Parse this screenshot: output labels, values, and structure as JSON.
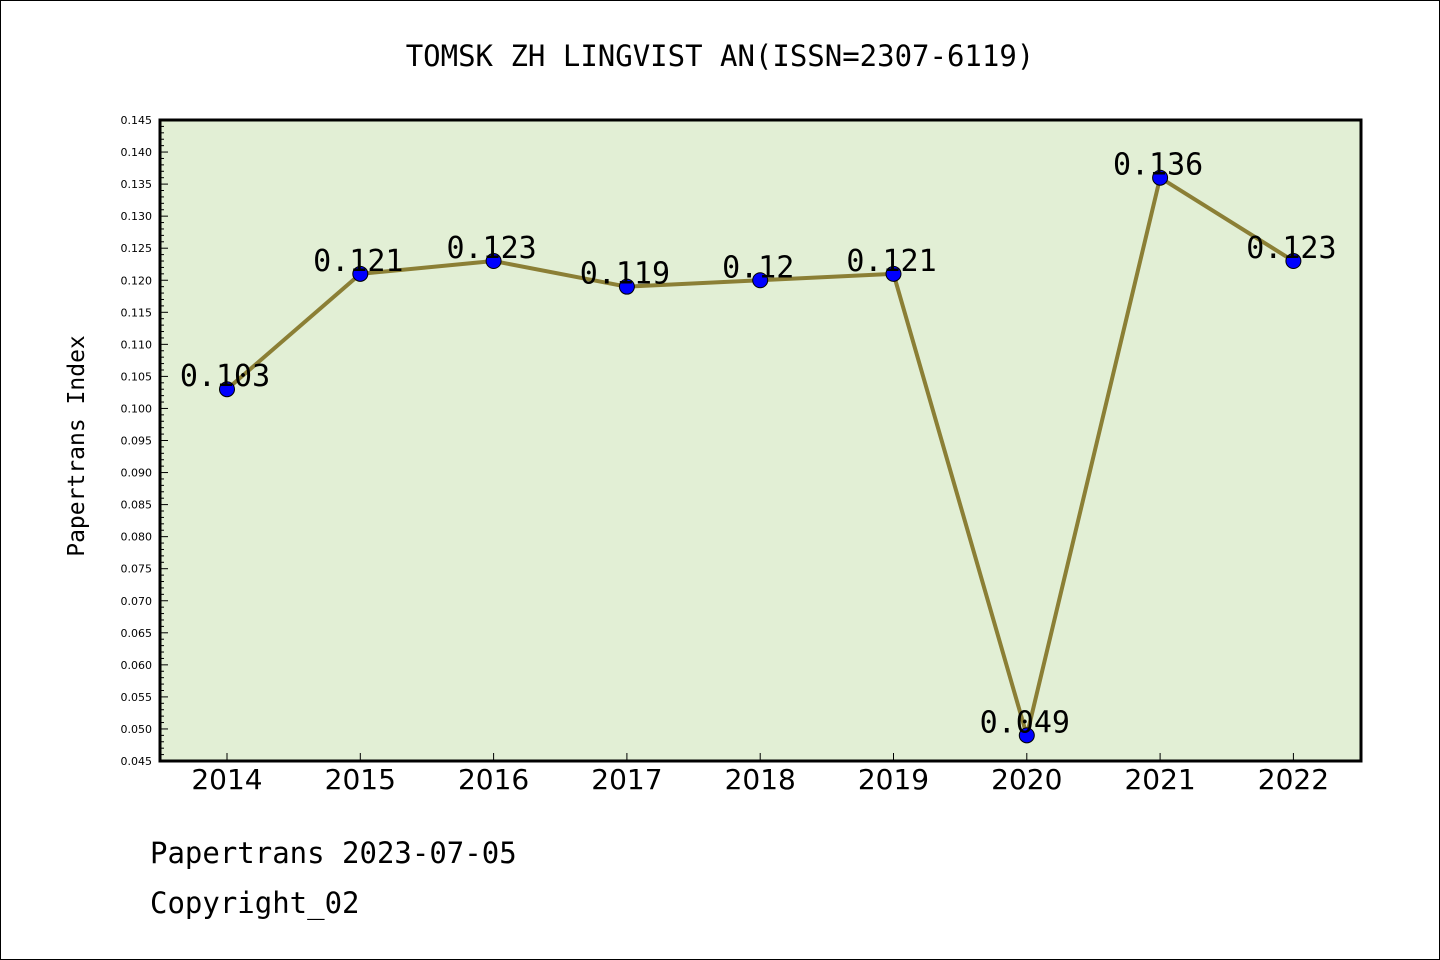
{
  "chart_data": {
    "type": "line",
    "title": "TOMSK ZH LINGVIST AN(ISSN=2307-6119)",
    "xlabel": "",
    "ylabel": "Papertrans Index",
    "categories": [
      "2014",
      "2015",
      "2016",
      "2017",
      "2018",
      "2019",
      "2020",
      "2021",
      "2022"
    ],
    "values": [
      0.103,
      0.121,
      0.123,
      0.119,
      0.12,
      0.121,
      0.049,
      0.136,
      0.123
    ],
    "data_labels": [
      "0.103",
      "0.121",
      "0.123",
      "0.119",
      "0.12",
      "0.121",
      "0.049",
      "0.136",
      "0.123"
    ],
    "ylim": [
      0.045,
      0.145
    ],
    "ytick_labels": [
      "0.045",
      "0.050",
      "0.055",
      "0.060",
      "0.065",
      "0.070",
      "0.075",
      "0.080",
      "0.085",
      "0.090",
      "0.095",
      "0.100",
      "0.105",
      "0.110",
      "0.115",
      "0.120",
      "0.125",
      "0.130",
      "0.135",
      "0.140",
      "0.145"
    ],
    "grid": false,
    "legend": "none",
    "colors": {
      "plot_background": "#e2efd5",
      "line": "#8b7f35",
      "marker": "#0000ff"
    }
  },
  "footer": {
    "line1": "Papertrans 2023-07-05",
    "line2": "Copyright_02"
  }
}
